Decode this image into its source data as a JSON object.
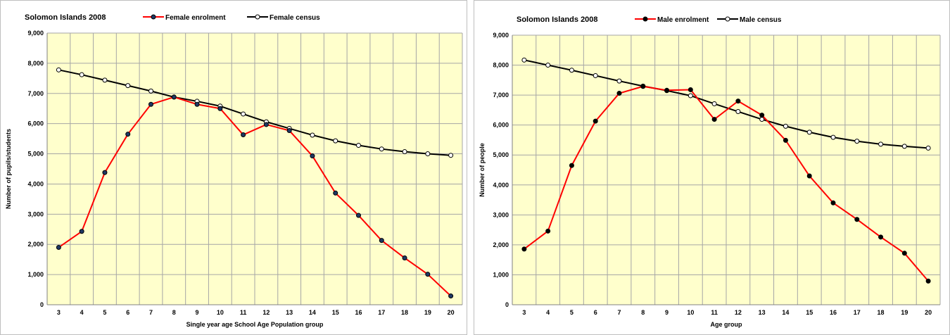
{
  "chart_data": [
    {
      "type": "line",
      "title": "Solomon Islands  2008",
      "xlabel": "Single year age School Age Population group",
      "ylabel": "Number of pupils/students",
      "ylim": [
        0,
        9000
      ],
      "yticks": [
        "0",
        "1,000",
        "2,000",
        "3,000",
        "4,000",
        "5,000",
        "6,000",
        "7,000",
        "8,000",
        "9,000"
      ],
      "categories": [
        "3",
        "4",
        "5",
        "6",
        "7",
        "8",
        "9",
        "10",
        "11",
        "12",
        "13",
        "14",
        "15",
        "16",
        "17",
        "18",
        "19",
        "20"
      ],
      "grid": true,
      "legend_position": "top",
      "series": [
        {
          "name": "Female enrolment",
          "color": "#ff0000",
          "marker": "filled",
          "marker_color": "#1f3864",
          "values": [
            1900,
            2430,
            4380,
            5650,
            6640,
            6880,
            6640,
            6500,
            5630,
            5970,
            5770,
            4930,
            3700,
            2960,
            2130,
            1550,
            1010,
            290
          ]
        },
        {
          "name": "Female census",
          "color": "#000000",
          "marker": "hollow",
          "marker_color": "#ffffff",
          "values": [
            7780,
            7620,
            7440,
            7260,
            7080,
            6880,
            6740,
            6580,
            6320,
            6060,
            5840,
            5620,
            5430,
            5280,
            5160,
            5070,
            5000,
            4950
          ]
        }
      ]
    },
    {
      "type": "line",
      "title": "Solomon Islands 2008",
      "xlabel": "Age group",
      "ylabel": "Number of people",
      "ylim": [
        0,
        9000
      ],
      "yticks": [
        "0",
        "1,000",
        "2,000",
        "3,000",
        "4,000",
        "5,000",
        "6,000",
        "7,000",
        "8,000",
        "9,000"
      ],
      "categories": [
        "3",
        "4",
        "5",
        "6",
        "7",
        "8",
        "9",
        "10",
        "11",
        "12",
        "13",
        "14",
        "15",
        "16",
        "17",
        "18",
        "19",
        "20"
      ],
      "grid": true,
      "legend_position": "top",
      "series": [
        {
          "name": "Male enrolment",
          "color": "#ff0000",
          "marker": "filled",
          "marker_color": "#000000",
          "values": [
            1860,
            2460,
            4650,
            6130,
            7060,
            7290,
            7160,
            7180,
            6190,
            6800,
            6330,
            5490,
            4300,
            3400,
            2850,
            2260,
            1720,
            790
          ]
        },
        {
          "name": "Male census",
          "color": "#000000",
          "marker": "hollow",
          "marker_color": "#ffffff",
          "values": [
            8170,
            8000,
            7830,
            7650,
            7470,
            7300,
            7150,
            6980,
            6710,
            6450,
            6190,
            5960,
            5760,
            5590,
            5460,
            5360,
            5290,
            5230
          ]
        }
      ]
    }
  ],
  "plot_bg": "#ffffcc",
  "grid_color": "#a6a6a6"
}
